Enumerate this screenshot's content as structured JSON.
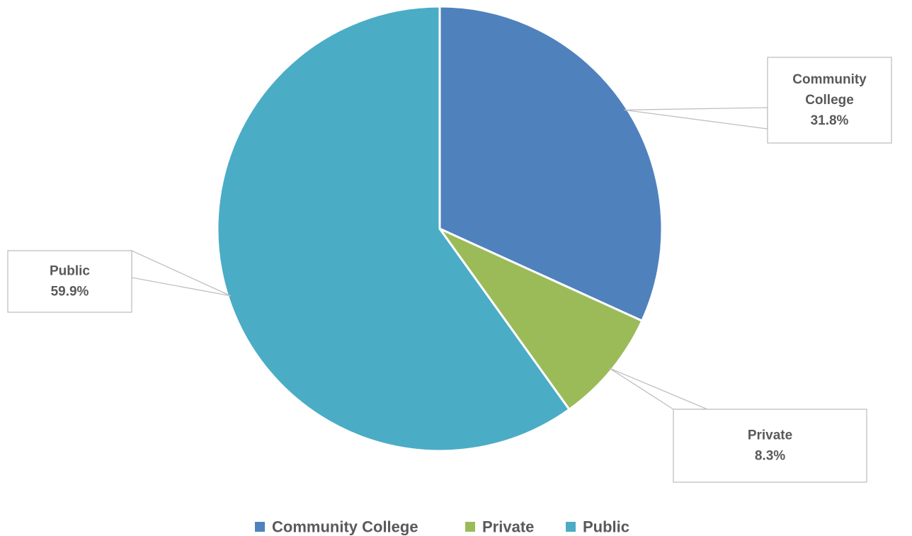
{
  "chart_data": {
    "type": "pie",
    "title": "",
    "categories": [
      "Community College",
      "Private",
      "Public"
    ],
    "values": [
      31.8,
      8.3,
      59.9
    ],
    "data_labels": [
      {
        "lines": [
          "Community",
          "College",
          "31.8%"
        ]
      },
      {
        "lines": [
          "Private",
          "8.3%"
        ]
      },
      {
        "lines": [
          "Public",
          "59.9%"
        ]
      }
    ],
    "colors": [
      "#4f81bd",
      "#9bbb59",
      "#4bacc6"
    ],
    "legend": {
      "position": "bottom",
      "entries": [
        "Community College",
        "Private",
        "Public"
      ]
    }
  }
}
